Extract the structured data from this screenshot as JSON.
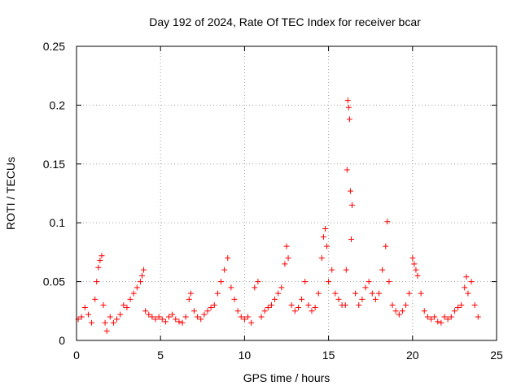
{
  "chart_data": {
    "type": "scatter",
    "title": "Day 192 of 2024, Rate Of TEC Index for receiver bcar",
    "xlabel": "GPS time / hours",
    "ylabel": "ROTI / TECUs",
    "xlim": [
      0,
      25
    ],
    "ylim": [
      0,
      0.25
    ],
    "x_ticks": [
      "0",
      "5",
      "10",
      "15",
      "20",
      "25"
    ],
    "y_ticks": [
      "0",
      "0.05",
      "0.1",
      "0.15",
      "0.2",
      "0.25"
    ],
    "grid": true,
    "marker": "+",
    "colors": {
      "series": "#ff0000",
      "grid": "#a0a0a0",
      "axis": "#000000"
    },
    "series": [
      {
        "x": [
          0.1,
          0.3,
          0.5,
          0.7,
          0.9,
          1.1,
          1.2,
          1.3,
          1.4,
          1.5,
          1.6,
          1.7,
          1.8,
          2.0,
          2.2,
          2.4,
          2.6,
          2.8,
          3.0,
          3.2,
          3.4,
          3.6,
          3.8,
          3.9,
          4.0,
          4.1,
          4.3,
          4.5,
          4.7,
          4.9,
          5.1,
          5.3,
          5.5,
          5.7,
          5.9,
          6.1,
          6.3,
          6.5,
          6.7,
          6.8,
          7.0,
          7.2,
          7.4,
          7.6,
          7.8,
          8.0,
          8.2,
          8.4,
          8.6,
          8.8,
          9.0,
          9.2,
          9.4,
          9.6,
          9.8,
          10.0,
          10.2,
          10.4,
          10.6,
          10.8,
          11.0,
          11.2,
          11.4,
          11.6,
          11.8,
          12.0,
          12.2,
          12.4,
          12.5,
          12.6,
          12.8,
          13.0,
          13.2,
          13.4,
          13.6,
          13.8,
          14.0,
          14.2,
          14.4,
          14.6,
          14.7,
          14.8,
          14.9,
          15.0,
          15.2,
          15.4,
          15.6,
          15.8,
          16.0,
          16.05,
          16.1,
          16.15,
          16.2,
          16.25,
          16.3,
          16.35,
          16.4,
          16.6,
          16.8,
          17.0,
          17.2,
          17.4,
          17.6,
          17.8,
          18.0,
          18.2,
          18.4,
          18.5,
          18.6,
          18.8,
          19.0,
          19.2,
          19.4,
          19.6,
          19.8,
          20.0,
          20.1,
          20.2,
          20.3,
          20.5,
          20.7,
          20.9,
          21.1,
          21.3,
          21.5,
          21.7,
          21.9,
          22.1,
          22.3,
          22.5,
          22.7,
          22.9,
          23.1,
          23.2,
          23.3,
          23.5,
          23.7,
          23.9
        ],
        "y": [
          0.018,
          0.02,
          0.028,
          0.022,
          0.015,
          0.035,
          0.05,
          0.062,
          0.068,
          0.072,
          0.03,
          0.015,
          0.008,
          0.02,
          0.015,
          0.018,
          0.022,
          0.03,
          0.028,
          0.035,
          0.04,
          0.045,
          0.05,
          0.055,
          0.06,
          0.025,
          0.022,
          0.02,
          0.018,
          0.02,
          0.018,
          0.016,
          0.02,
          0.022,
          0.018,
          0.016,
          0.015,
          0.02,
          0.035,
          0.04,
          0.025,
          0.02,
          0.018,
          0.022,
          0.025,
          0.028,
          0.03,
          0.04,
          0.05,
          0.06,
          0.07,
          0.045,
          0.035,
          0.025,
          0.02,
          0.018,
          0.02,
          0.015,
          0.045,
          0.05,
          0.02,
          0.025,
          0.028,
          0.03,
          0.035,
          0.04,
          0.045,
          0.065,
          0.08,
          0.07,
          0.03,
          0.025,
          0.028,
          0.035,
          0.05,
          0.03,
          0.025,
          0.028,
          0.04,
          0.07,
          0.088,
          0.095,
          0.08,
          0.05,
          0.06,
          0.04,
          0.035,
          0.03,
          0.03,
          0.06,
          0.145,
          0.204,
          0.198,
          0.188,
          0.127,
          0.086,
          0.115,
          0.04,
          0.03,
          0.035,
          0.045,
          0.05,
          0.04,
          0.035,
          0.04,
          0.06,
          0.08,
          0.101,
          0.05,
          0.03,
          0.025,
          0.022,
          0.025,
          0.03,
          0.04,
          0.07,
          0.065,
          0.06,
          0.055,
          0.04,
          0.025,
          0.02,
          0.018,
          0.02,
          0.016,
          0.015,
          0.02,
          0.018,
          0.02,
          0.025,
          0.028,
          0.03,
          0.045,
          0.054,
          0.04,
          0.05,
          0.03,
          0.02
        ]
      }
    ]
  }
}
